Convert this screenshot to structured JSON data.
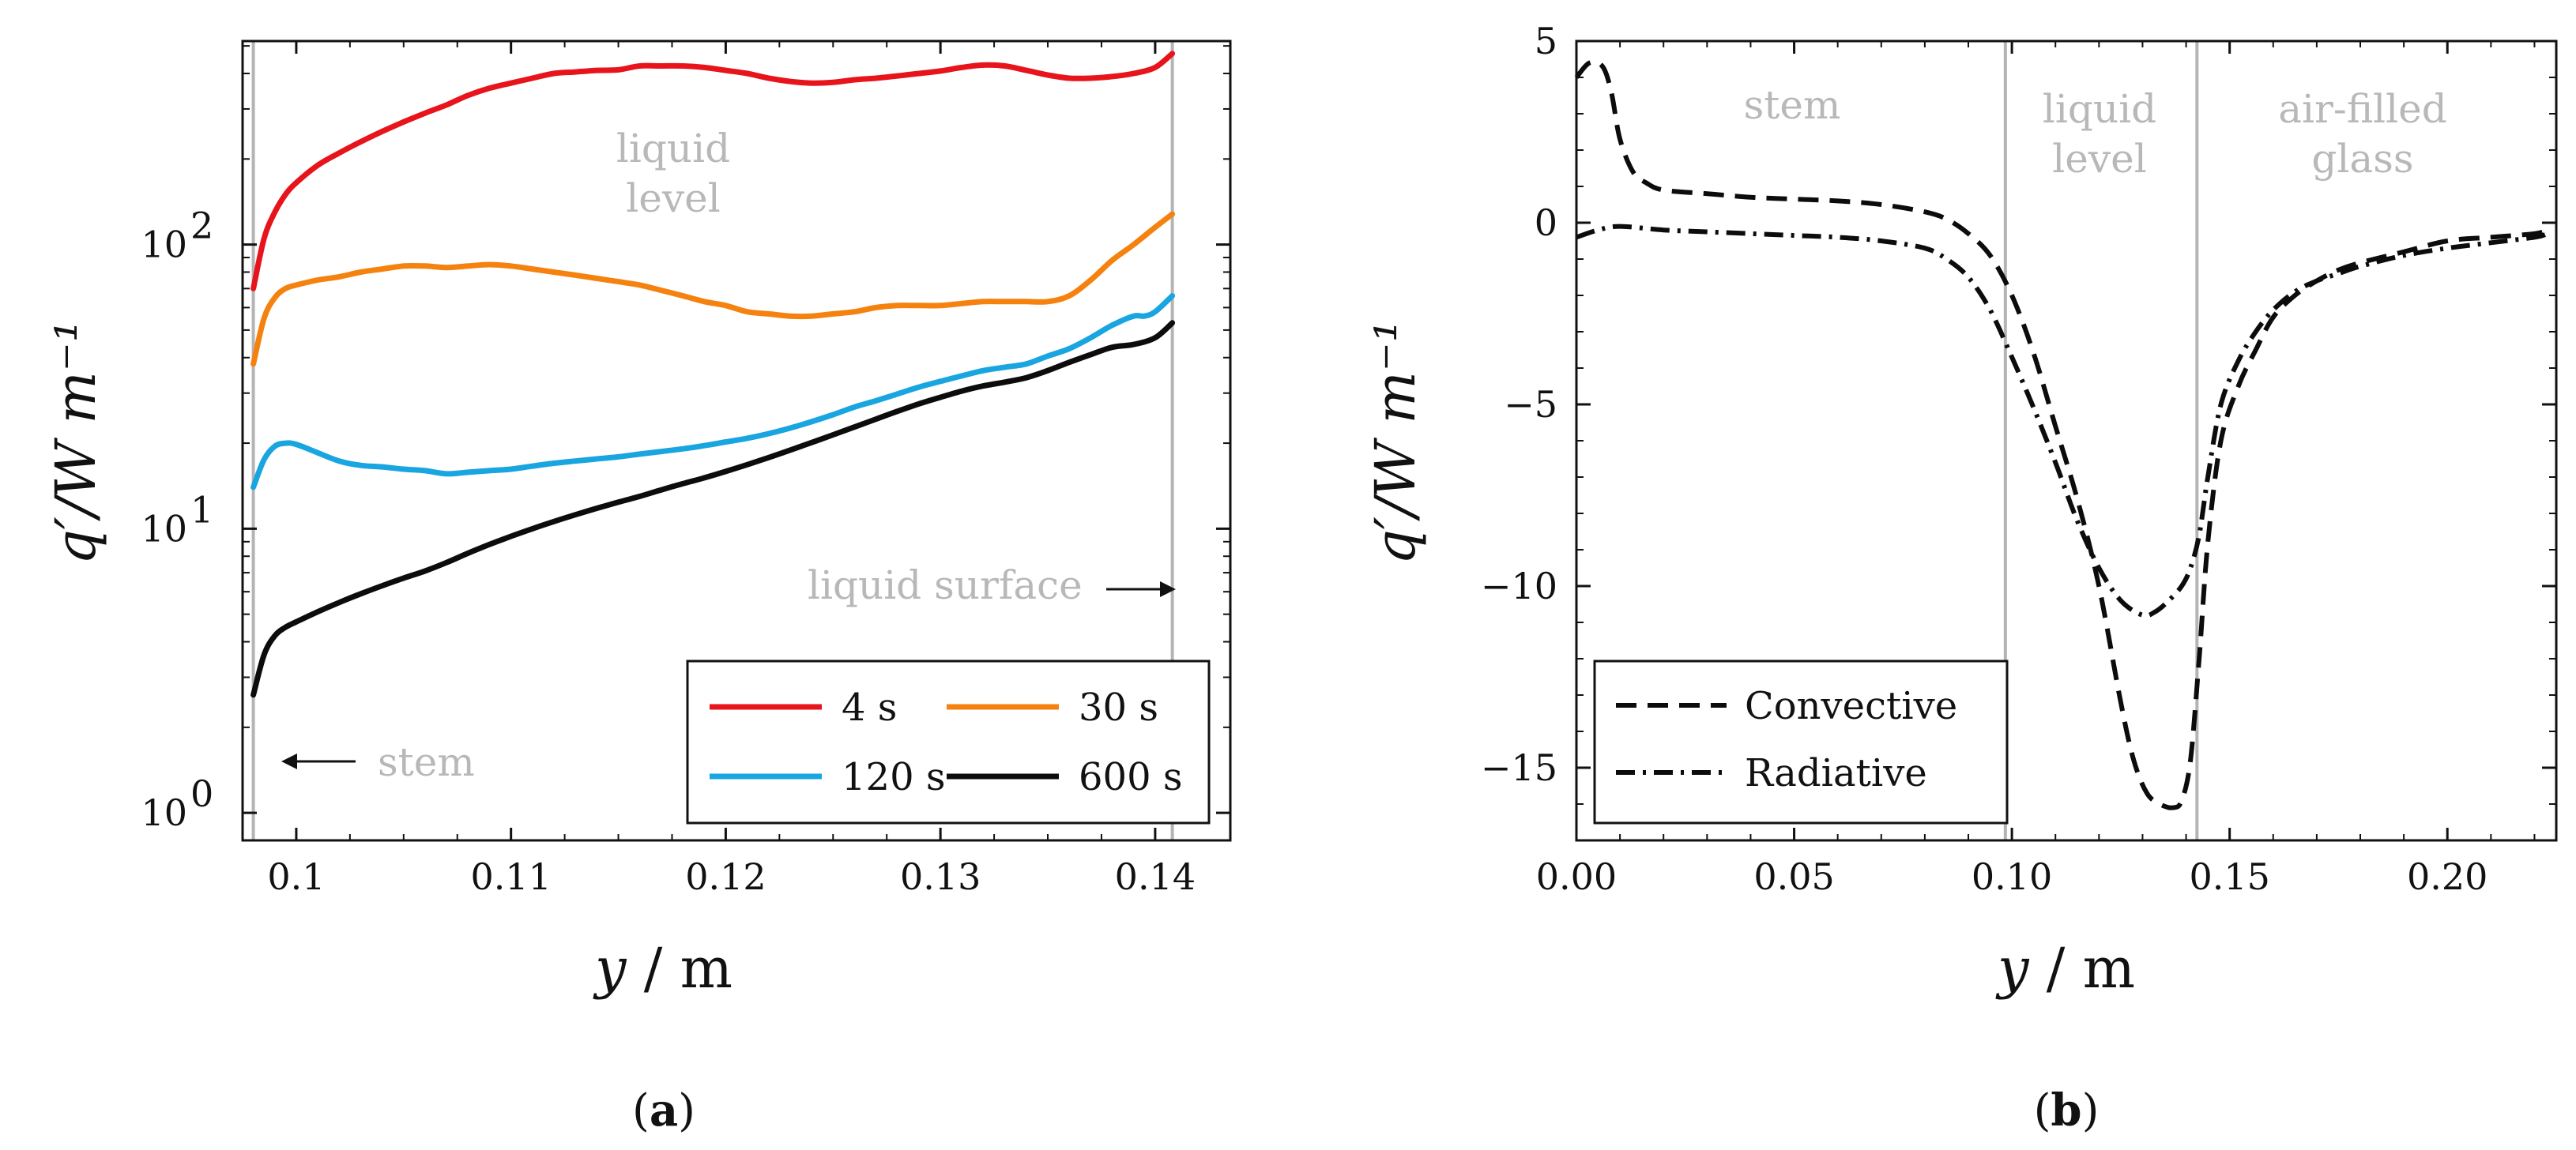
{
  "chart_data": [
    {
      "panel_label": "(a)",
      "panel_label_bold": "a",
      "type": "line",
      "yscale": "log",
      "xlabel_var": "y",
      "xlabel_unit": "m",
      "ylabel": "q′/W m⁻¹",
      "xlim": [
        0.0975,
        0.1435
      ],
      "ylim": [
        0.8,
        520
      ],
      "xticks": [
        0.1,
        0.11,
        0.12,
        0.13,
        0.14
      ],
      "xtick_labels": [
        "0.1",
        "0.11",
        "0.12",
        "0.13",
        "0.14"
      ],
      "yticks": [
        1,
        10,
        100
      ],
      "ytick_labels": [
        "10",
        "10",
        "10"
      ],
      "ytick_exponents": [
        "0",
        "1",
        "2"
      ],
      "vlines": [
        0.098,
        0.1408
      ],
      "annotations": {
        "liquid_level_1": "liquid",
        "liquid_level_2": "level",
        "liquid_surface": "liquid surface",
        "stem": "stem"
      },
      "series": [
        {
          "name": "4 s",
          "color": "#e8141c",
          "x": [
            0.098,
            0.0985,
            0.099,
            0.0995,
            0.1,
            0.101,
            0.102,
            0.103,
            0.104,
            0.105,
            0.106,
            0.107,
            0.108,
            0.109,
            0.11,
            0.111,
            0.112,
            0.113,
            0.114,
            0.115,
            0.116,
            0.117,
            0.118,
            0.119,
            0.12,
            0.121,
            0.122,
            0.123,
            0.124,
            0.125,
            0.126,
            0.127,
            0.128,
            0.129,
            0.13,
            0.131,
            0.132,
            0.133,
            0.134,
            0.135,
            0.136,
            0.137,
            0.138,
            0.139,
            0.14,
            0.1408
          ],
          "y": [
            70,
            105,
            130,
            150,
            165,
            190,
            210,
            230,
            250,
            270,
            290,
            310,
            335,
            355,
            370,
            385,
            400,
            405,
            410,
            412,
            425,
            425,
            425,
            420,
            410,
            400,
            385,
            375,
            370,
            372,
            380,
            385,
            392,
            400,
            408,
            420,
            428,
            425,
            410,
            395,
            385,
            385,
            390,
            400,
            420,
            470
          ]
        },
        {
          "name": "30 s",
          "color": "#f5820f",
          "x": [
            0.098,
            0.0985,
            0.099,
            0.0995,
            0.1,
            0.101,
            0.102,
            0.103,
            0.104,
            0.105,
            0.106,
            0.107,
            0.108,
            0.109,
            0.11,
            0.111,
            0.112,
            0.113,
            0.114,
            0.115,
            0.116,
            0.117,
            0.118,
            0.119,
            0.12,
            0.121,
            0.122,
            0.123,
            0.124,
            0.125,
            0.126,
            0.127,
            0.128,
            0.129,
            0.13,
            0.131,
            0.132,
            0.133,
            0.134,
            0.135,
            0.136,
            0.137,
            0.138,
            0.139,
            0.14,
            0.1408
          ],
          "y": [
            38,
            55,
            65,
            70,
            72,
            75,
            77,
            80,
            82,
            84,
            84,
            83,
            84,
            85,
            84,
            82,
            80,
            78,
            76,
            74,
            72,
            69,
            66,
            63,
            61,
            58,
            57,
            56,
            56,
            57,
            58,
            60,
            61,
            61,
            61,
            62,
            63,
            63,
            63,
            63,
            66,
            75,
            88,
            100,
            115,
            128
          ]
        },
        {
          "name": "120 s",
          "color": "#18a5e0",
          "x": [
            0.098,
            0.0985,
            0.099,
            0.0995,
            0.1,
            0.101,
            0.102,
            0.103,
            0.104,
            0.105,
            0.106,
            0.107,
            0.108,
            0.109,
            0.11,
            0.111,
            0.112,
            0.113,
            0.114,
            0.115,
            0.116,
            0.117,
            0.118,
            0.119,
            0.12,
            0.121,
            0.122,
            0.123,
            0.124,
            0.125,
            0.126,
            0.127,
            0.128,
            0.129,
            0.13,
            0.131,
            0.132,
            0.133,
            0.134,
            0.135,
            0.136,
            0.137,
            0.138,
            0.139,
            0.1395,
            0.14,
            0.1408
          ],
          "y": [
            14,
            17.5,
            19.5,
            20,
            19.8,
            18.5,
            17.3,
            16.7,
            16.5,
            16.2,
            16.0,
            15.6,
            15.8,
            16.0,
            16.2,
            16.6,
            17.0,
            17.3,
            17.6,
            17.9,
            18.3,
            18.7,
            19.1,
            19.6,
            20.2,
            20.8,
            21.6,
            22.6,
            23.8,
            25.2,
            26.8,
            28.2,
            29.8,
            31.5,
            33.0,
            34.5,
            36.0,
            37.0,
            38.0,
            40.5,
            43.0,
            47.0,
            52.0,
            56.0,
            56.0,
            58.0,
            66.0
          ]
        },
        {
          "name": "600 s",
          "color": "#0c0c0c",
          "x": [
            0.098,
            0.0985,
            0.099,
            0.0995,
            0.1,
            0.101,
            0.102,
            0.103,
            0.104,
            0.105,
            0.106,
            0.107,
            0.108,
            0.109,
            0.11,
            0.111,
            0.112,
            0.113,
            0.114,
            0.115,
            0.116,
            0.117,
            0.118,
            0.119,
            0.12,
            0.121,
            0.122,
            0.123,
            0.124,
            0.125,
            0.126,
            0.127,
            0.128,
            0.129,
            0.13,
            0.131,
            0.132,
            0.133,
            0.134,
            0.135,
            0.136,
            0.137,
            0.138,
            0.139,
            0.14,
            0.1408
          ],
          "y": [
            2.6,
            3.6,
            4.2,
            4.5,
            4.7,
            5.1,
            5.5,
            5.9,
            6.3,
            6.7,
            7.1,
            7.6,
            8.2,
            8.8,
            9.4,
            10.0,
            10.6,
            11.2,
            11.8,
            12.4,
            13.0,
            13.7,
            14.4,
            15.1,
            15.9,
            16.8,
            17.8,
            18.9,
            20.1,
            21.4,
            22.8,
            24.3,
            25.9,
            27.5,
            29.0,
            30.5,
            31.8,
            32.8,
            34.0,
            36.0,
            38.5,
            41.0,
            43.5,
            44.5,
            47.0,
            53.0
          ]
        }
      ]
    },
    {
      "panel_label": "(b)",
      "panel_label_bold": "b",
      "type": "line",
      "yscale": "linear",
      "xlabel_var": "y",
      "xlabel_unit": "m",
      "ylabel": "q′/W m⁻¹",
      "xlim": [
        0.0,
        0.225
      ],
      "ylim": [
        -17,
        5
      ],
      "xticks": [
        0.0,
        0.05,
        0.1,
        0.15,
        0.2
      ],
      "xtick_labels": [
        "0.00",
        "0.05",
        "0.10",
        "0.15",
        "0.20"
      ],
      "yticks": [
        5,
        0,
        -5,
        -10,
        -15
      ],
      "ytick_labels": [
        "5",
        "0",
        "−5",
        "−10",
        "−15"
      ],
      "vlines": [
        0.0985,
        0.1425
      ],
      "annotations": {
        "stem": "stem",
        "liquid_level_1": "liquid",
        "liquid_level_2": "level",
        "air_filled_1": "air-filled",
        "air_filled_2": "glass"
      },
      "series": [
        {
          "name": "Convective",
          "color": "#0c0c0c",
          "dash": "26,14",
          "x": [
            0.0,
            0.003,
            0.006,
            0.008,
            0.01,
            0.013,
            0.016,
            0.02,
            0.03,
            0.04,
            0.05,
            0.06,
            0.07,
            0.08,
            0.085,
            0.09,
            0.095,
            0.1,
            0.105,
            0.11,
            0.115,
            0.12,
            0.125,
            0.128,
            0.131,
            0.134,
            0.137,
            0.139,
            0.141,
            0.143,
            0.145,
            0.148,
            0.152,
            0.156,
            0.16,
            0.165,
            0.17,
            0.175,
            0.18,
            0.19,
            0.2,
            0.21,
            0.22,
            0.223
          ],
          "y": [
            4.0,
            4.4,
            4.3,
            3.6,
            2.3,
            1.4,
            1.1,
            0.9,
            0.8,
            0.7,
            0.65,
            0.6,
            0.5,
            0.3,
            0.1,
            -0.3,
            -0.9,
            -2.0,
            -3.6,
            -5.6,
            -7.6,
            -10.0,
            -13.2,
            -14.8,
            -15.7,
            -16.0,
            -16.1,
            -15.9,
            -14.8,
            -12.0,
            -8.8,
            -6.0,
            -4.5,
            -3.5,
            -2.6,
            -2.0,
            -1.6,
            -1.3,
            -1.1,
            -0.8,
            -0.5,
            -0.4,
            -0.3,
            -0.2
          ]
        },
        {
          "name": "Radiative",
          "color": "#0c0c0c",
          "dash": "24,10,4,10",
          "x": [
            0.0,
            0.005,
            0.01,
            0.02,
            0.03,
            0.04,
            0.05,
            0.06,
            0.07,
            0.08,
            0.085,
            0.09,
            0.095,
            0.1,
            0.105,
            0.11,
            0.115,
            0.12,
            0.125,
            0.13,
            0.133,
            0.136,
            0.139,
            0.141,
            0.143,
            0.145,
            0.148,
            0.152,
            0.156,
            0.16,
            0.165,
            0.17,
            0.175,
            0.18,
            0.19,
            0.2,
            0.21,
            0.22,
            0.223
          ],
          "y": [
            -0.4,
            -0.2,
            -0.1,
            -0.2,
            -0.25,
            -0.3,
            -0.35,
            -0.4,
            -0.5,
            -0.7,
            -1.0,
            -1.5,
            -2.4,
            -3.7,
            -5.1,
            -6.6,
            -8.2,
            -9.5,
            -10.4,
            -10.8,
            -10.7,
            -10.4,
            -10.0,
            -9.5,
            -8.6,
            -7.0,
            -5.0,
            -3.8,
            -3.0,
            -2.4,
            -1.9,
            -1.6,
            -1.4,
            -1.2,
            -0.9,
            -0.7,
            -0.55,
            -0.4,
            -0.3
          ]
        }
      ]
    }
  ]
}
